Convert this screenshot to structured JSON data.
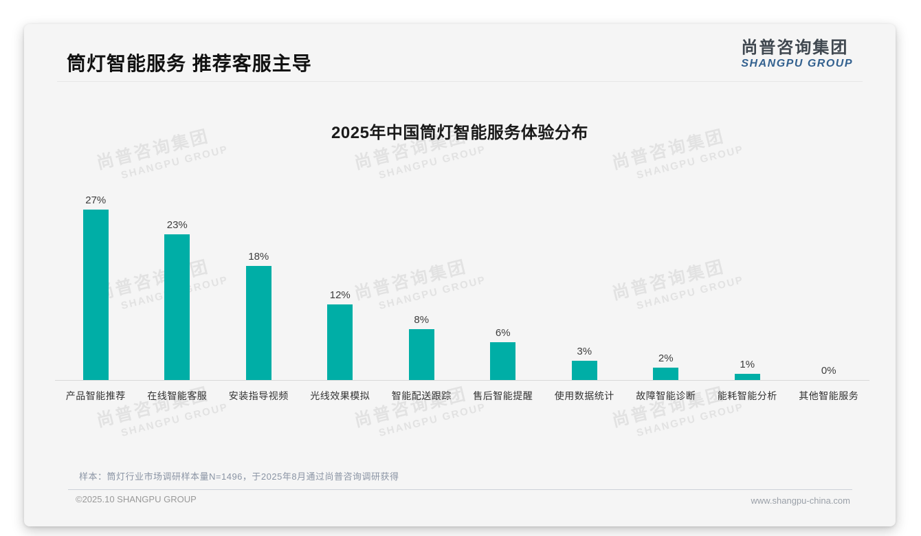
{
  "page": {
    "title": "筒灯智能服务 推荐客服主导",
    "logo_cn": "尚普咨询集团",
    "logo_en": "SHANGPU GROUP",
    "note": "样本：筒灯行业市场调研样本量N=1496，于2025年8月通过尚普咨询调研获得",
    "copyright": "©2025.10 SHANGPU GROUP",
    "website": "www.shangpu-china.com",
    "watermark_cn": "尚普咨询集团",
    "watermark_en": "SHANGPU GROUP"
  },
  "chart_data": {
    "type": "bar",
    "title": "2025年中国筒灯智能服务体验分布",
    "categories": [
      "产品智能推荐",
      "在线智能客服",
      "安装指导视频",
      "光线效果模拟",
      "智能配送跟踪",
      "售后智能提醒",
      "使用数据统计",
      "故障智能诊断",
      "能耗智能分析",
      "其他智能服务"
    ],
    "values": [
      27,
      23,
      18,
      12,
      8,
      6,
      3,
      2,
      1,
      0
    ],
    "unit": "%",
    "bar_color": "#00AEA6",
    "value_label_color": "#3d3d3d",
    "ylim": [
      0,
      30
    ],
    "grid": false,
    "legend": "none",
    "xlabel": "",
    "ylabel": ""
  }
}
